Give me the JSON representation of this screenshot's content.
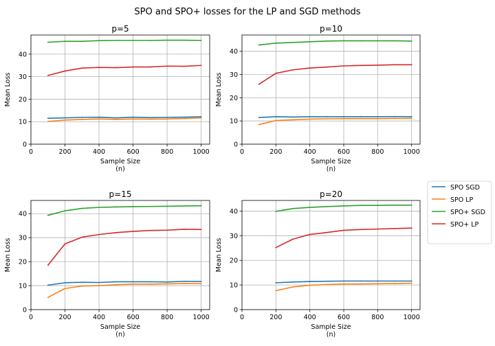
{
  "figure": {
    "title": "SPO and SPO+ losses for the LP and SGD methods"
  },
  "colors": {
    "spo_sgd": "#1f77b4",
    "spo_lp": "#ff7f0e",
    "spo_plus_sgd": "#2ca02c",
    "spo_plus_lp": "#d62728",
    "grid": "#b0b0b0"
  },
  "legend": {
    "placement": "right-center",
    "entries": [
      "SPO SGD",
      "SPO LP",
      "SPO+ SGD",
      "SPO+ LP"
    ]
  },
  "chart_data": [
    {
      "type": "line",
      "title": "p=5",
      "xlabel": "Sample Size\n(n)",
      "ylabel": "Mean Loss",
      "xlim": [
        0,
        1050
      ],
      "ylim": [
        0,
        48.5
      ],
      "xticks": [
        0,
        200,
        400,
        600,
        800,
        1000
      ],
      "yticks": [
        0,
        10,
        20,
        30,
        40
      ],
      "grid": true,
      "x": [
        100,
        200,
        300,
        400,
        500,
        600,
        700,
        800,
        900,
        1000
      ],
      "series": [
        {
          "name": "SPO SGD",
          "values": [
            11.5,
            11.7,
            11.9,
            12.0,
            11.7,
            12.0,
            11.8,
            11.9,
            12.0,
            12.2
          ]
        },
        {
          "name": "SPO LP",
          "values": [
            10.1,
            10.7,
            11.0,
            11.2,
            11.0,
            11.2,
            11.1,
            11.2,
            11.4,
            11.7
          ]
        },
        {
          "name": "SPO+ SGD",
          "values": [
            45.3,
            45.7,
            45.7,
            46.0,
            46.1,
            46.1,
            46.1,
            46.2,
            46.2,
            46.1
          ]
        },
        {
          "name": "SPO+ LP",
          "values": [
            30.5,
            32.5,
            33.8,
            34.1,
            34.0,
            34.3,
            34.3,
            34.7,
            34.6,
            35.0
          ]
        }
      ]
    },
    {
      "type": "line",
      "title": "p=10",
      "xlabel": "Sample Size\n(n)",
      "ylabel": "Mean Loss",
      "xlim": [
        0,
        1050
      ],
      "ylim": [
        0,
        47
      ],
      "xticks": [
        0,
        200,
        400,
        600,
        800,
        1000
      ],
      "yticks": [
        0,
        10,
        20,
        30,
        40
      ],
      "grid": true,
      "x": [
        100,
        200,
        300,
        400,
        500,
        600,
        700,
        800,
        900,
        1000
      ],
      "series": [
        {
          "name": "SPO SGD",
          "values": [
            11.5,
            11.8,
            11.7,
            11.8,
            11.8,
            11.8,
            11.8,
            11.8,
            11.9,
            11.8
          ]
        },
        {
          "name": "SPO LP",
          "values": [
            8.4,
            10.2,
            10.5,
            10.8,
            10.9,
            11.0,
            11.0,
            11.0,
            11.1,
            11.1
          ]
        },
        {
          "name": "SPO+ SGD",
          "values": [
            42.7,
            43.5,
            43.8,
            44.1,
            44.4,
            44.5,
            44.5,
            44.5,
            44.5,
            44.4
          ]
        },
        {
          "name": "SPO+ LP",
          "values": [
            25.8,
            30.5,
            32.0,
            32.8,
            33.2,
            33.7,
            33.9,
            34.0,
            34.2,
            34.2
          ]
        }
      ]
    },
    {
      "type": "line",
      "title": "p=15",
      "xlabel": "Sample Size\n(n)",
      "ylabel": "Mean Loss",
      "xlim": [
        0,
        1050
      ],
      "ylim": [
        0,
        45.5
      ],
      "xticks": [
        0,
        200,
        400,
        600,
        800,
        1000
      ],
      "yticks": [
        0,
        10,
        20,
        30,
        40
      ],
      "grid": true,
      "x": [
        100,
        200,
        300,
        400,
        500,
        600,
        700,
        800,
        900,
        1000
      ],
      "series": [
        {
          "name": "SPO SGD",
          "values": [
            10.2,
            11.2,
            11.4,
            11.3,
            11.6,
            11.6,
            11.6,
            11.5,
            11.8,
            11.7
          ]
        },
        {
          "name": "SPO LP",
          "values": [
            5.1,
            8.8,
            9.8,
            10.0,
            10.4,
            10.6,
            10.6,
            10.7,
            10.9,
            10.8
          ]
        },
        {
          "name": "SPO+ SGD",
          "values": [
            39.3,
            41.2,
            42.2,
            42.6,
            42.8,
            42.9,
            43.0,
            43.1,
            43.2,
            43.3
          ]
        },
        {
          "name": "SPO+ LP",
          "values": [
            18.5,
            27.4,
            30.2,
            31.3,
            32.1,
            32.6,
            33.0,
            33.1,
            33.5,
            33.4
          ]
        }
      ]
    },
    {
      "type": "line",
      "title": "p=20",
      "xlabel": "Sample Size\n(n)",
      "ylabel": "Mean Loss",
      "xlim": [
        0,
        1050
      ],
      "ylim": [
        0,
        44.3
      ],
      "xticks": [
        0,
        200,
        400,
        600,
        800,
        1000
      ],
      "yticks": [
        0,
        10,
        20,
        30,
        40
      ],
      "grid": true,
      "x": [
        200,
        300,
        400,
        500,
        600,
        700,
        800,
        900,
        1000
      ],
      "series": [
        {
          "name": "SPO SGD",
          "values": [
            10.9,
            11.2,
            11.4,
            11.5,
            11.6,
            11.6,
            11.6,
            11.6,
            11.6
          ]
        },
        {
          "name": "SPO LP",
          "values": [
            7.7,
            9.2,
            9.9,
            10.2,
            10.4,
            10.4,
            10.5,
            10.6,
            10.7
          ]
        },
        {
          "name": "SPO+ SGD",
          "values": [
            39.9,
            41.0,
            41.5,
            41.8,
            42.1,
            42.3,
            42.3,
            42.4,
            42.4
          ]
        },
        {
          "name": "SPO+ LP",
          "values": [
            25.2,
            28.6,
            30.5,
            31.3,
            32.2,
            32.5,
            32.7,
            32.9,
            33.1
          ]
        }
      ]
    }
  ]
}
